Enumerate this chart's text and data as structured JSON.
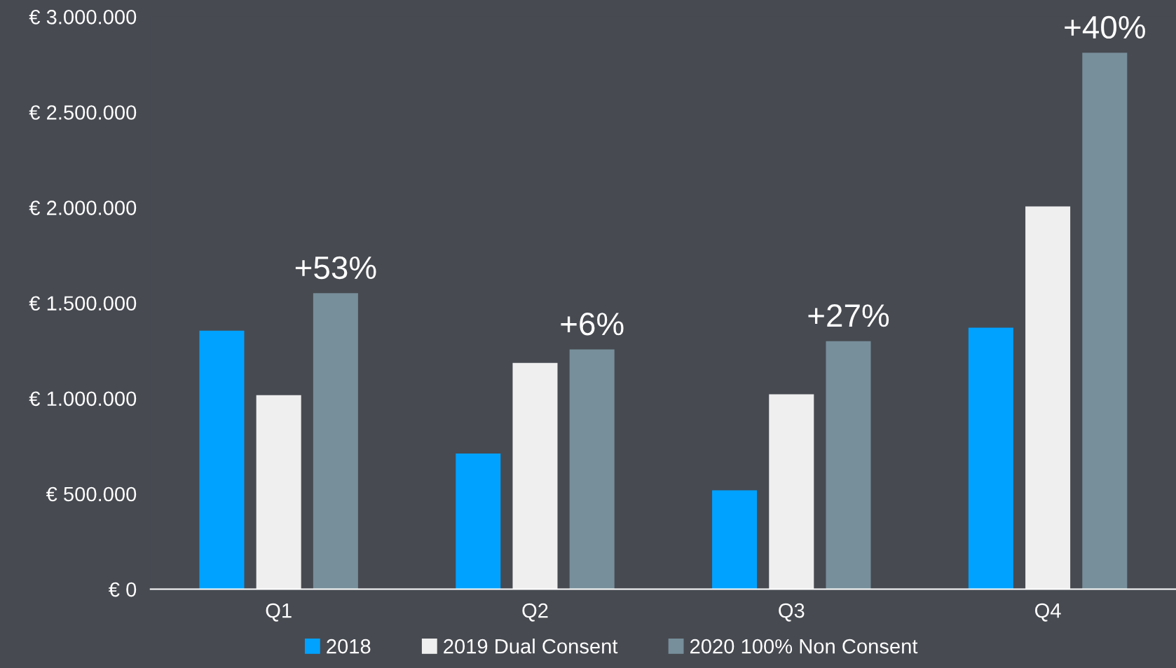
{
  "chart_data": {
    "type": "bar",
    "categories": [
      "Q1",
      "Q2",
      "Q3",
      "Q4"
    ],
    "series": [
      {
        "name": "2018",
        "color": "#00a2ff",
        "values": [
          1355000,
          711000,
          518000,
          1370000
        ]
      },
      {
        "name": "2019 Dual Consent",
        "color": "#efefef",
        "values": [
          1017000,
          1186000,
          1021000,
          2006000
        ]
      },
      {
        "name": "2020 100% Non Consent",
        "color": "#778f9b",
        "values": [
          1551000,
          1256000,
          1300000,
          2811000
        ]
      }
    ],
    "ylim": [
      0,
      3000000
    ],
    "yticks": [
      {
        "value": 0,
        "label": "€ 0"
      },
      {
        "value": 500000,
        "label": "€ 500.000"
      },
      {
        "value": 1000000,
        "label": "€ 1.000.000"
      },
      {
        "value": 1500000,
        "label": "€ 1.500.000"
      },
      {
        "value": 2000000,
        "label": "€ 2.000.000"
      },
      {
        "value": 2500000,
        "label": "€ 2.500.000"
      },
      {
        "value": 3000000,
        "label": "€ 3.000.000"
      }
    ],
    "annotations": [
      "+53%",
      "+6%",
      "+27%",
      "+40%"
    ],
    "grid": false,
    "legend": "bottom"
  }
}
